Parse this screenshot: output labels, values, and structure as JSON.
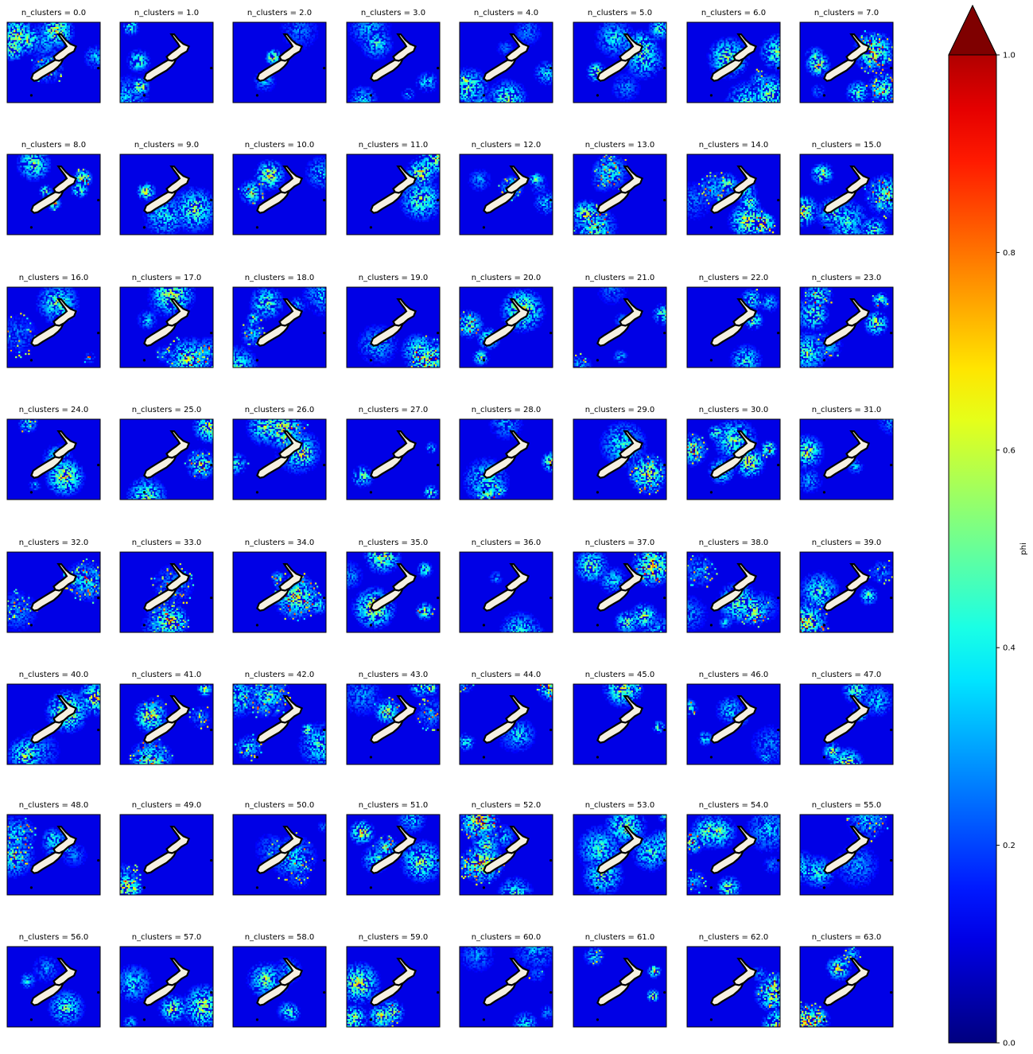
{
  "chart_data": {
    "type": "heatmap",
    "facet_label": "n_clusters",
    "facet_values": [
      "0.0",
      "1.0",
      "2.0",
      "3.0",
      "4.0",
      "5.0",
      "6.0",
      "7.0",
      "8.0",
      "9.0",
      "10.0",
      "11.0",
      "12.0",
      "13.0",
      "14.0",
      "15.0",
      "16.0",
      "17.0",
      "18.0",
      "19.0",
      "20.0",
      "21.0",
      "22.0",
      "23.0",
      "24.0",
      "25.0",
      "26.0",
      "27.0",
      "28.0",
      "29.0",
      "30.0",
      "31.0",
      "32.0",
      "33.0",
      "34.0",
      "35.0",
      "36.0",
      "37.0",
      "38.0",
      "39.0",
      "40.0",
      "41.0",
      "42.0",
      "43.0",
      "44.0",
      "45.0",
      "46.0",
      "47.0",
      "48.0",
      "49.0",
      "50.0",
      "51.0",
      "52.0",
      "53.0",
      "54.0",
      "55.0",
      "56.0",
      "57.0",
      "58.0",
      "59.0",
      "60.0",
      "61.0",
      "62.0",
      "63.0"
    ],
    "panel_titles": [
      "n_clusters = 0.0",
      "n_clusters = 1.0",
      "n_clusters = 2.0",
      "n_clusters = 3.0",
      "n_clusters = 4.0",
      "n_clusters = 5.0",
      "n_clusters = 6.0",
      "n_clusters = 7.0",
      "n_clusters = 8.0",
      "n_clusters = 9.0",
      "n_clusters = 10.0",
      "n_clusters = 11.0",
      "n_clusters = 12.0",
      "n_clusters = 13.0",
      "n_clusters = 14.0",
      "n_clusters = 15.0",
      "n_clusters = 16.0",
      "n_clusters = 17.0",
      "n_clusters = 18.0",
      "n_clusters = 19.0",
      "n_clusters = 20.0",
      "n_clusters = 21.0",
      "n_clusters = 22.0",
      "n_clusters = 23.0",
      "n_clusters = 24.0",
      "n_clusters = 25.0",
      "n_clusters = 26.0",
      "n_clusters = 27.0",
      "n_clusters = 28.0",
      "n_clusters = 29.0",
      "n_clusters = 30.0",
      "n_clusters = 31.0",
      "n_clusters = 32.0",
      "n_clusters = 33.0",
      "n_clusters = 34.0",
      "n_clusters = 35.0",
      "n_clusters = 36.0",
      "n_clusters = 37.0",
      "n_clusters = 38.0",
      "n_clusters = 39.0",
      "n_clusters = 40.0",
      "n_clusters = 41.0",
      "n_clusters = 42.0",
      "n_clusters = 43.0",
      "n_clusters = 44.0",
      "n_clusters = 45.0",
      "n_clusters = 46.0",
      "n_clusters = 47.0",
      "n_clusters = 48.0",
      "n_clusters = 49.0",
      "n_clusters = 50.0",
      "n_clusters = 51.0",
      "n_clusters = 52.0",
      "n_clusters = 53.0",
      "n_clusters = 54.0",
      "n_clusters = 55.0",
      "n_clusters = 56.0",
      "n_clusters = 57.0",
      "n_clusters = 58.0",
      "n_clusters = 59.0",
      "n_clusters = 60.0",
      "n_clusters = 61.0",
      "n_clusters = 62.0",
      "n_clusters = 63.0"
    ],
    "colorbar": {
      "label": "phi",
      "range": [
        0.0,
        1.0
      ],
      "ticks": [
        0.0,
        0.2,
        0.4,
        0.6,
        0.8,
        1.0
      ],
      "tick_labels": [
        "0.0",
        "0.2",
        "0.4",
        "0.6",
        "0.8",
        "1.0"
      ],
      "extend": "max",
      "colormap": "jet",
      "colors": [
        "#00007f",
        "#0000ff",
        "#007fff",
        "#00ffff",
        "#7fff7f",
        "#ffff00",
        "#ff7f00",
        "#ff0000",
        "#7f0000"
      ]
    },
    "layout": {
      "rows": 8,
      "cols": 8
    },
    "map": {
      "land_color": "#f5f0e1",
      "coastline_color": "#000000"
    },
    "grid": false
  }
}
